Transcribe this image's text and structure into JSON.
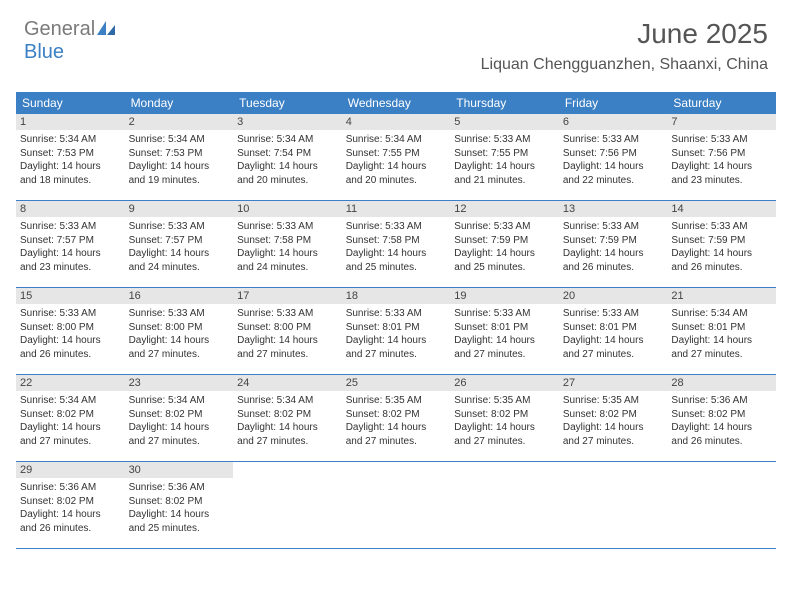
{
  "logo": {
    "text_gray": "General",
    "text_blue": "Blue"
  },
  "title": "June 2025",
  "location": "Liquan Chengguanzhen, Shaanxi, China",
  "colors": {
    "header_blue": "#3b7fc4",
    "daynum_bg": "#e6e6e6",
    "text": "#333333",
    "title_text": "#555555"
  },
  "weekdays": [
    "Sunday",
    "Monday",
    "Tuesday",
    "Wednesday",
    "Thursday",
    "Friday",
    "Saturday"
  ],
  "weeks": [
    [
      {
        "n": "1",
        "sr": "Sunrise: 5:34 AM",
        "ss": "Sunset: 7:53 PM",
        "d1": "Daylight: 14 hours",
        "d2": "and 18 minutes."
      },
      {
        "n": "2",
        "sr": "Sunrise: 5:34 AM",
        "ss": "Sunset: 7:53 PM",
        "d1": "Daylight: 14 hours",
        "d2": "and 19 minutes."
      },
      {
        "n": "3",
        "sr": "Sunrise: 5:34 AM",
        "ss": "Sunset: 7:54 PM",
        "d1": "Daylight: 14 hours",
        "d2": "and 20 minutes."
      },
      {
        "n": "4",
        "sr": "Sunrise: 5:34 AM",
        "ss": "Sunset: 7:55 PM",
        "d1": "Daylight: 14 hours",
        "d2": "and 20 minutes."
      },
      {
        "n": "5",
        "sr": "Sunrise: 5:33 AM",
        "ss": "Sunset: 7:55 PM",
        "d1": "Daylight: 14 hours",
        "d2": "and 21 minutes."
      },
      {
        "n": "6",
        "sr": "Sunrise: 5:33 AM",
        "ss": "Sunset: 7:56 PM",
        "d1": "Daylight: 14 hours",
        "d2": "and 22 minutes."
      },
      {
        "n": "7",
        "sr": "Sunrise: 5:33 AM",
        "ss": "Sunset: 7:56 PM",
        "d1": "Daylight: 14 hours",
        "d2": "and 23 minutes."
      }
    ],
    [
      {
        "n": "8",
        "sr": "Sunrise: 5:33 AM",
        "ss": "Sunset: 7:57 PM",
        "d1": "Daylight: 14 hours",
        "d2": "and 23 minutes."
      },
      {
        "n": "9",
        "sr": "Sunrise: 5:33 AM",
        "ss": "Sunset: 7:57 PM",
        "d1": "Daylight: 14 hours",
        "d2": "and 24 minutes."
      },
      {
        "n": "10",
        "sr": "Sunrise: 5:33 AM",
        "ss": "Sunset: 7:58 PM",
        "d1": "Daylight: 14 hours",
        "d2": "and 24 minutes."
      },
      {
        "n": "11",
        "sr": "Sunrise: 5:33 AM",
        "ss": "Sunset: 7:58 PM",
        "d1": "Daylight: 14 hours",
        "d2": "and 25 minutes."
      },
      {
        "n": "12",
        "sr": "Sunrise: 5:33 AM",
        "ss": "Sunset: 7:59 PM",
        "d1": "Daylight: 14 hours",
        "d2": "and 25 minutes."
      },
      {
        "n": "13",
        "sr": "Sunrise: 5:33 AM",
        "ss": "Sunset: 7:59 PM",
        "d1": "Daylight: 14 hours",
        "d2": "and 26 minutes."
      },
      {
        "n": "14",
        "sr": "Sunrise: 5:33 AM",
        "ss": "Sunset: 7:59 PM",
        "d1": "Daylight: 14 hours",
        "d2": "and 26 minutes."
      }
    ],
    [
      {
        "n": "15",
        "sr": "Sunrise: 5:33 AM",
        "ss": "Sunset: 8:00 PM",
        "d1": "Daylight: 14 hours",
        "d2": "and 26 minutes."
      },
      {
        "n": "16",
        "sr": "Sunrise: 5:33 AM",
        "ss": "Sunset: 8:00 PM",
        "d1": "Daylight: 14 hours",
        "d2": "and 27 minutes."
      },
      {
        "n": "17",
        "sr": "Sunrise: 5:33 AM",
        "ss": "Sunset: 8:00 PM",
        "d1": "Daylight: 14 hours",
        "d2": "and 27 minutes."
      },
      {
        "n": "18",
        "sr": "Sunrise: 5:33 AM",
        "ss": "Sunset: 8:01 PM",
        "d1": "Daylight: 14 hours",
        "d2": "and 27 minutes."
      },
      {
        "n": "19",
        "sr": "Sunrise: 5:33 AM",
        "ss": "Sunset: 8:01 PM",
        "d1": "Daylight: 14 hours",
        "d2": "and 27 minutes."
      },
      {
        "n": "20",
        "sr": "Sunrise: 5:33 AM",
        "ss": "Sunset: 8:01 PM",
        "d1": "Daylight: 14 hours",
        "d2": "and 27 minutes."
      },
      {
        "n": "21",
        "sr": "Sunrise: 5:34 AM",
        "ss": "Sunset: 8:01 PM",
        "d1": "Daylight: 14 hours",
        "d2": "and 27 minutes."
      }
    ],
    [
      {
        "n": "22",
        "sr": "Sunrise: 5:34 AM",
        "ss": "Sunset: 8:02 PM",
        "d1": "Daylight: 14 hours",
        "d2": "and 27 minutes."
      },
      {
        "n": "23",
        "sr": "Sunrise: 5:34 AM",
        "ss": "Sunset: 8:02 PM",
        "d1": "Daylight: 14 hours",
        "d2": "and 27 minutes."
      },
      {
        "n": "24",
        "sr": "Sunrise: 5:34 AM",
        "ss": "Sunset: 8:02 PM",
        "d1": "Daylight: 14 hours",
        "d2": "and 27 minutes."
      },
      {
        "n": "25",
        "sr": "Sunrise: 5:35 AM",
        "ss": "Sunset: 8:02 PM",
        "d1": "Daylight: 14 hours",
        "d2": "and 27 minutes."
      },
      {
        "n": "26",
        "sr": "Sunrise: 5:35 AM",
        "ss": "Sunset: 8:02 PM",
        "d1": "Daylight: 14 hours",
        "d2": "and 27 minutes."
      },
      {
        "n": "27",
        "sr": "Sunrise: 5:35 AM",
        "ss": "Sunset: 8:02 PM",
        "d1": "Daylight: 14 hours",
        "d2": "and 27 minutes."
      },
      {
        "n": "28",
        "sr": "Sunrise: 5:36 AM",
        "ss": "Sunset: 8:02 PM",
        "d1": "Daylight: 14 hours",
        "d2": "and 26 minutes."
      }
    ],
    [
      {
        "n": "29",
        "sr": "Sunrise: 5:36 AM",
        "ss": "Sunset: 8:02 PM",
        "d1": "Daylight: 14 hours",
        "d2": "and 26 minutes."
      },
      {
        "n": "30",
        "sr": "Sunrise: 5:36 AM",
        "ss": "Sunset: 8:02 PM",
        "d1": "Daylight: 14 hours",
        "d2": "and 25 minutes."
      },
      null,
      null,
      null,
      null,
      null
    ]
  ]
}
